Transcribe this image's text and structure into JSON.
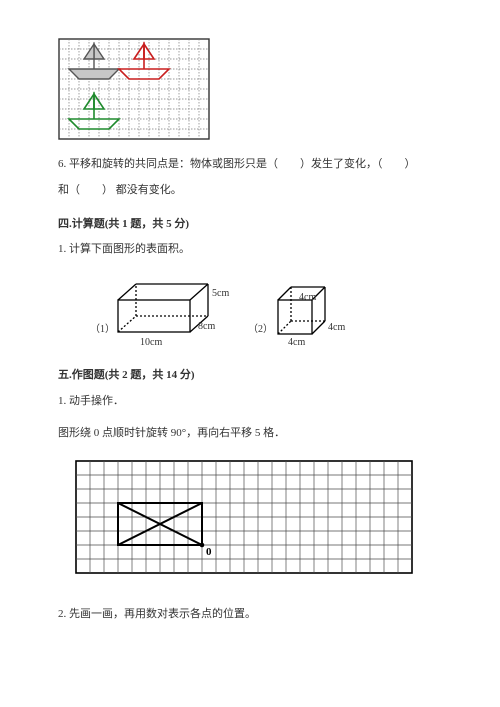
{
  "fig_top": {
    "grid": {
      "cols": 15,
      "rows": 10,
      "cell": 10,
      "stroke": "#888888",
      "dash": "1 1"
    },
    "shapes": {
      "gray": {
        "stroke": "#6b6b6b",
        "fill": "#c7c7c7"
      },
      "red": {
        "stroke": "#c81e1e",
        "fill": "none"
      },
      "green": {
        "stroke": "#1f8a2d",
        "fill": "none"
      }
    }
  },
  "q6": {
    "text_a": "6. 平移和旋转的共同点是：物体或图形只是（　　）发生了变化，（　　）",
    "text_b": "和（　　） 都没有变化。"
  },
  "section4": {
    "header": "四.计算题(共 1 题，共 5 分)",
    "q1": "1. 计算下面图形的表面积。",
    "box": {
      "label1": "（1）",
      "label2": "（2）",
      "l": "10cm",
      "w": "8cm",
      "h": "5cm",
      "cube": "4cm",
      "stroke": "#000000"
    }
  },
  "section5": {
    "header": "五.作图题(共 2 题，共 14 分)",
    "q1": "1. 动手操作．",
    "instr": "图形绕 0 点顺时针旋转 90°，再向右平移 5 格．",
    "grid": {
      "cols": 24,
      "rows": 8,
      "cell": 14,
      "stroke": "#555555",
      "border": "#000000"
    },
    "shape_stroke": "#000000",
    "o_label": "0",
    "q2": "2. 先画一画，再用数对表示各点的位置。"
  },
  "colors": {
    "text": "#333333",
    "bg": "#ffffff"
  }
}
